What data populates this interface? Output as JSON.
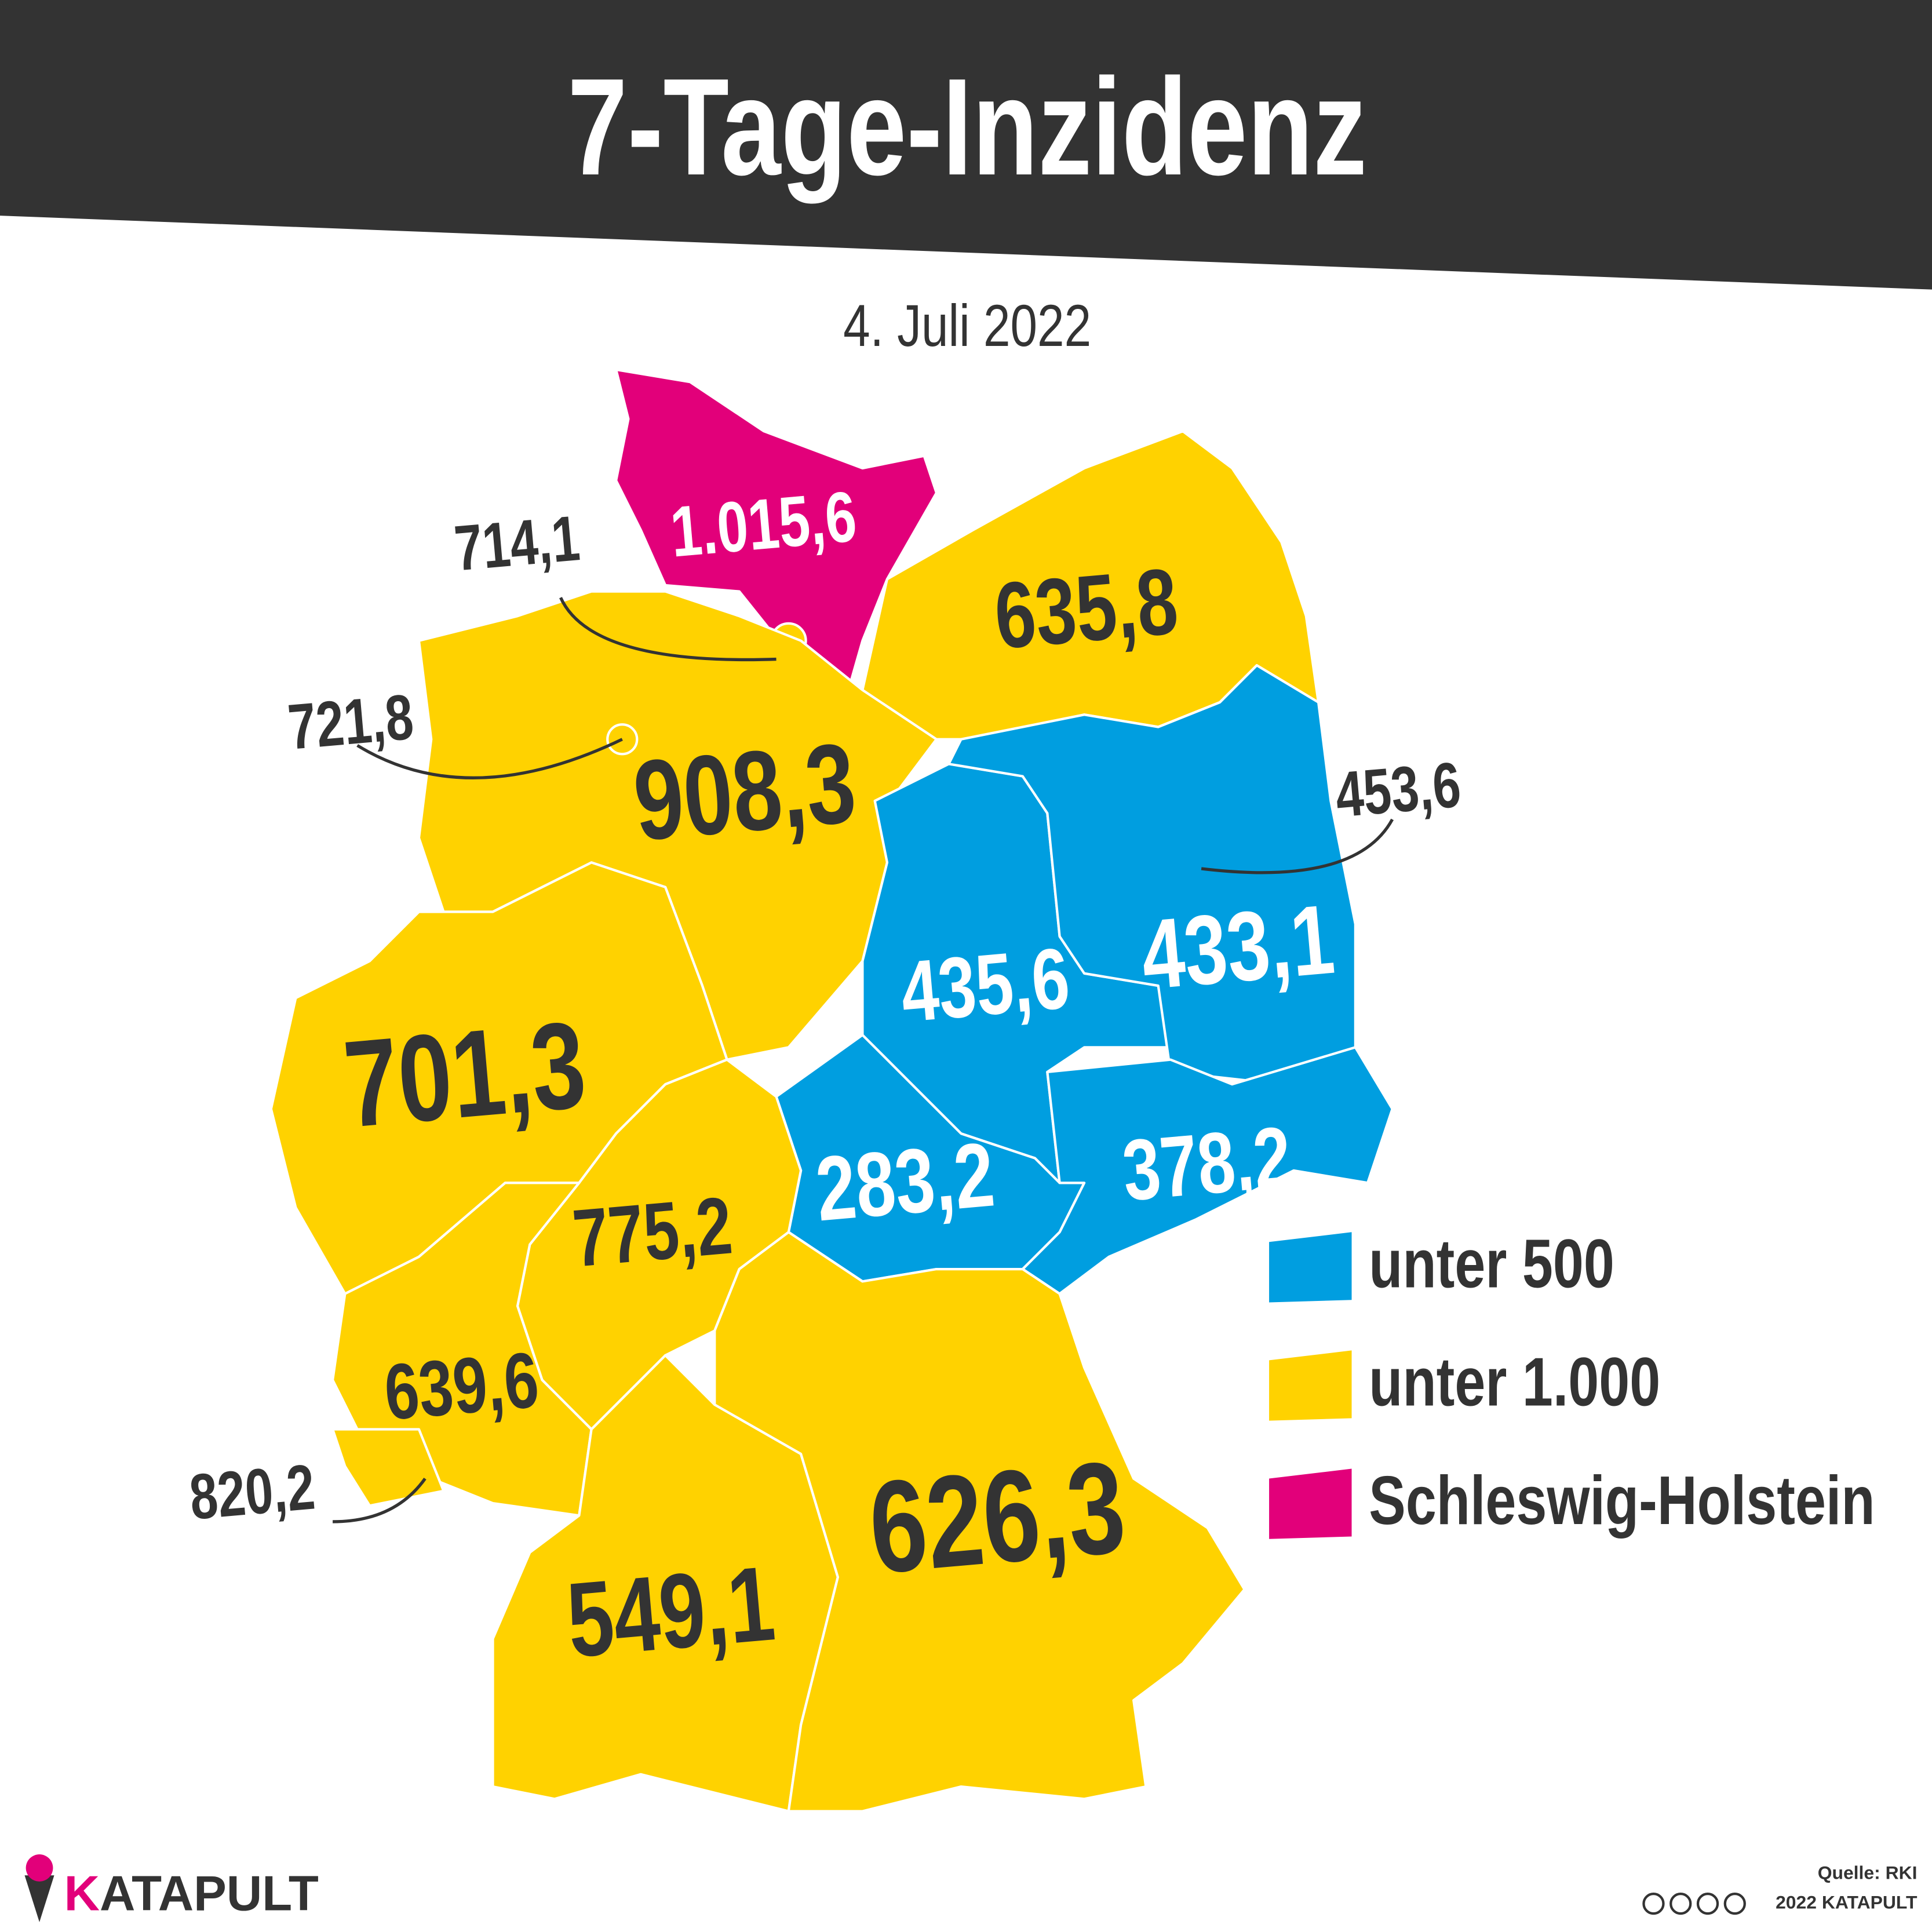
{
  "header": {
    "title": "7-Tage-Inzidenz",
    "date": "4. Juli 2022"
  },
  "regions": [
    {
      "value": "1.015,6",
      "color": "#e2007a"
    },
    {
      "value": "635,8",
      "color": "#ffd200"
    },
    {
      "value": "714,1",
      "color": "#ffd200"
    },
    {
      "value": "908,3",
      "color": "#ffd200"
    },
    {
      "value": "721,8",
      "color": "#ffd200"
    },
    {
      "value": "453,6",
      "color": "#009ee0"
    },
    {
      "value": "435,6",
      "color": "#009ee0"
    },
    {
      "value": "433,1",
      "color": "#009ee0"
    },
    {
      "value": "701,3",
      "color": "#ffd200"
    },
    {
      "value": "283,2",
      "color": "#009ee0"
    },
    {
      "value": "378,2",
      "color": "#009ee0"
    },
    {
      "value": "775,2",
      "color": "#ffd200"
    },
    {
      "value": "639,6",
      "color": "#ffd200"
    },
    {
      "value": "820,2",
      "color": "#ffd200"
    },
    {
      "value": "549,1",
      "color": "#ffd200"
    },
    {
      "value": "626,3",
      "color": "#ffd200"
    }
  ],
  "legend": [
    {
      "label": "unter 500",
      "color": "#009ee0"
    },
    {
      "label": "unter 1.000",
      "color": "#ffd200"
    },
    {
      "label": "Schleswig-Holstein",
      "color": "#e2007a"
    }
  ],
  "source": "Quelle: RKI",
  "copyright": "2022 KATAPULT",
  "logo": "KATAPULT"
}
